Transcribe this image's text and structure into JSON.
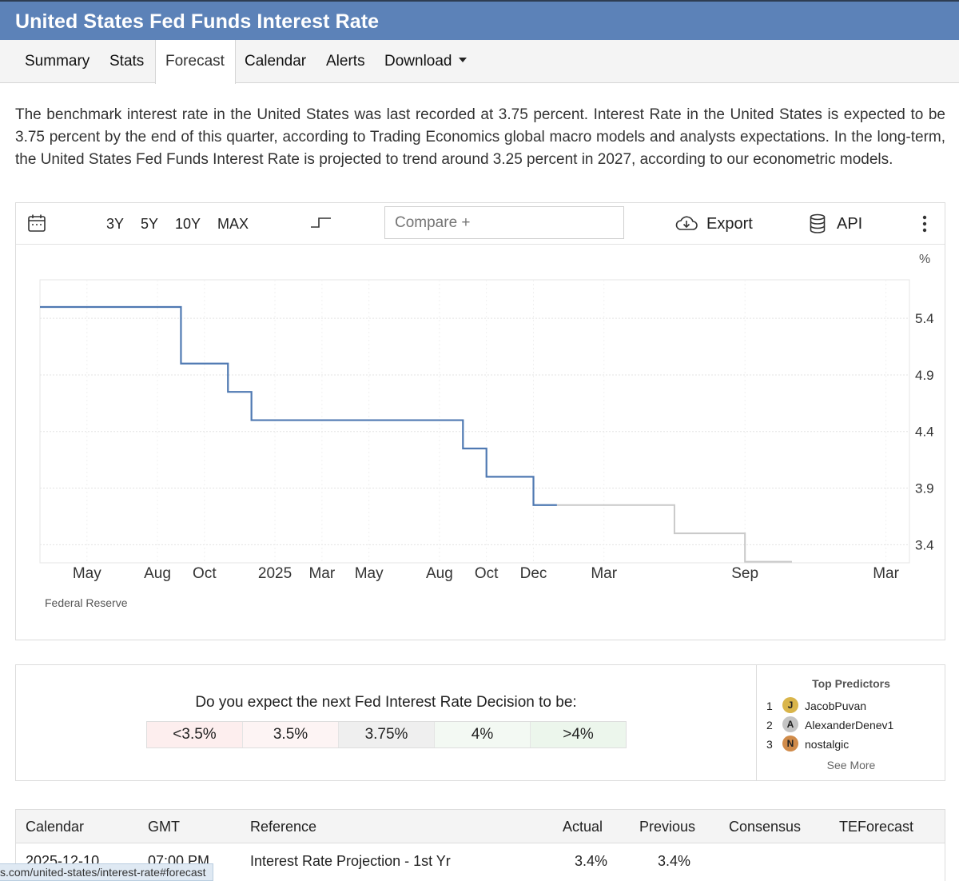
{
  "page": {
    "title": "United States Fed Funds Interest Rate"
  },
  "tabs": [
    "Summary",
    "Stats",
    "Forecast",
    "Calendar",
    "Alerts",
    "Download"
  ],
  "active_tab": "Forecast",
  "description": "The benchmark interest rate in the United States was last recorded at 3.75 percent. Interest Rate in the United States is expected to be 3.75 percent by the end of this quarter, according to Trading Economics global macro models and analysts expectations. In the long-term, the United States Fed Funds Interest Rate is projected to trend around 3.25 percent in 2027, according to our econometric models.",
  "toolbar": {
    "ranges": [
      "3Y",
      "5Y",
      "10Y",
      "MAX"
    ],
    "compare_placeholder": "Compare +",
    "export_label": "Export",
    "api_label": "API",
    "icons": [
      "calendar-icon",
      "step-chart-icon",
      "cloud-download-icon",
      "database-icon",
      "more-vertical-icon"
    ]
  },
  "chart_data": {
    "type": "line",
    "step": true,
    "ylabel": "%",
    "y_ticks": [
      "5.4",
      "4.9",
      "4.4",
      "3.9",
      "3.4"
    ],
    "x_ticks": [
      "May",
      "Aug",
      "Oct",
      "2025",
      "Mar",
      "May",
      "Aug",
      "Oct",
      "Dec",
      "Mar",
      "Sep",
      "Mar"
    ],
    "ylim": [
      3.24,
      5.74
    ],
    "series": [
      {
        "kind": "actual",
        "color": "#4f79b2",
        "points": [
          [
            "2024-03",
            5.5
          ],
          [
            "2024-09",
            5.0
          ],
          [
            "2024-11",
            4.75
          ],
          [
            "2024-12",
            4.5
          ],
          [
            "2025-09",
            4.25
          ],
          [
            "2025-10",
            4.0
          ],
          [
            "2025-12",
            3.75
          ],
          [
            "2026-01",
            3.75
          ]
        ]
      },
      {
        "kind": "forecast",
        "color": "#c9c9c9",
        "points": [
          [
            "2026-01",
            3.75
          ],
          [
            "2026-06",
            3.5
          ],
          [
            "2026-09",
            3.25
          ],
          [
            "2026-11",
            3.25
          ]
        ]
      }
    ],
    "source": "Federal Reserve"
  },
  "poll": {
    "question": "Do you expect the next Fed Interest Rate Decision to be:",
    "options": [
      {
        "label": "<3.5%",
        "color": "#fdeeee"
      },
      {
        "label": "3.5%",
        "color": "#fdf4f4"
      },
      {
        "label": "3.75%",
        "color": "#efefef"
      },
      {
        "label": "4%",
        "color": "#f3f9f3"
      },
      {
        "label": ">4%",
        "color": "#ecf6ec"
      }
    ]
  },
  "predictors": {
    "title": "Top Predictors",
    "list": [
      {
        "rank": "1",
        "initial": "J",
        "name": "JacobPuvan",
        "color": "#d9b54a"
      },
      {
        "rank": "2",
        "initial": "A",
        "name": "AlexanderDenev1",
        "color": "#c4c4c4"
      },
      {
        "rank": "3",
        "initial": "N",
        "name": "nostalgic",
        "color": "#d08b4a"
      }
    ],
    "see_more": "See More"
  },
  "calendar": {
    "headers": [
      "Calendar",
      "GMT",
      "Reference",
      "Actual",
      "Previous",
      "Consensus",
      "TEForecast"
    ],
    "rows": [
      {
        "date": "2025-12-10",
        "time": "07:00 PM",
        "reference": "Interest Rate Projection - 1st Yr",
        "actual": "3.4%",
        "previous": "3.4%",
        "consensus": "",
        "teforecast": ""
      }
    ]
  },
  "status_url": "s.com/united-states/interest-rate#forecast"
}
